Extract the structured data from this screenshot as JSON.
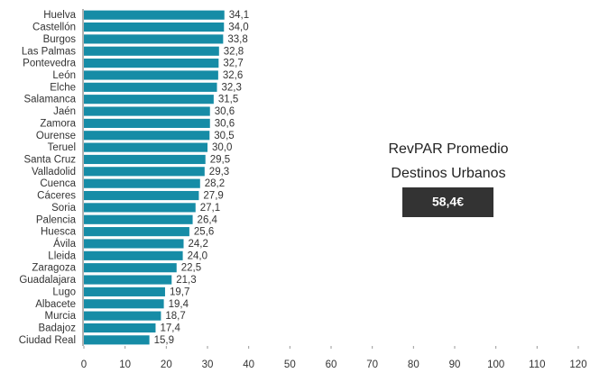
{
  "chart_data": {
    "type": "barh",
    "categories": [
      "Huelva",
      "Castellón",
      "Burgos",
      "Las Palmas",
      "Pontevedra",
      "León",
      "Elche",
      "Salamanca",
      "Jaén",
      "Zamora",
      "Ourense",
      "Teruel",
      "Santa Cruz",
      "Valladolid",
      "Cuenca",
      "Cáceres",
      "Soria",
      "Palencia",
      "Huesca",
      "Ávila",
      "Lleida",
      "Zaragoza",
      "Guadalajara",
      "Lugo",
      "Albacete",
      "Murcia",
      "Badajoz",
      "Ciudad Real"
    ],
    "values": [
      34.1,
      34.0,
      33.8,
      32.8,
      32.7,
      32.6,
      32.3,
      31.5,
      30.6,
      30.6,
      30.5,
      30.0,
      29.5,
      29.3,
      28.2,
      27.9,
      27.1,
      26.4,
      25.6,
      24.2,
      24.0,
      22.5,
      21.3,
      19.7,
      19.4,
      18.7,
      17.4,
      15.9
    ],
    "value_labels": [
      "34,1",
      "34,0",
      "33,8",
      "32,8",
      "32,7",
      "32,6",
      "32,3",
      "31,5",
      "30,6",
      "30,6",
      "30,5",
      "30,0",
      "29,5",
      "29,3",
      "28,2",
      "27,9",
      "27,1",
      "26,4",
      "25,6",
      "24,2",
      "24,0",
      "22,5",
      "21,3",
      "19,7",
      "19,4",
      "18,7",
      "17,4",
      "15,9"
    ],
    "color": "#168ca6",
    "xlim": [
      0,
      120
    ],
    "xticks": [
      0,
      10,
      20,
      30,
      40,
      50,
      60,
      70,
      80,
      90,
      100,
      110,
      120
    ],
    "annotation": {
      "lines": [
        "RevPAR Promedio",
        "Destinos Urbanos"
      ],
      "value": "58,4€"
    }
  }
}
